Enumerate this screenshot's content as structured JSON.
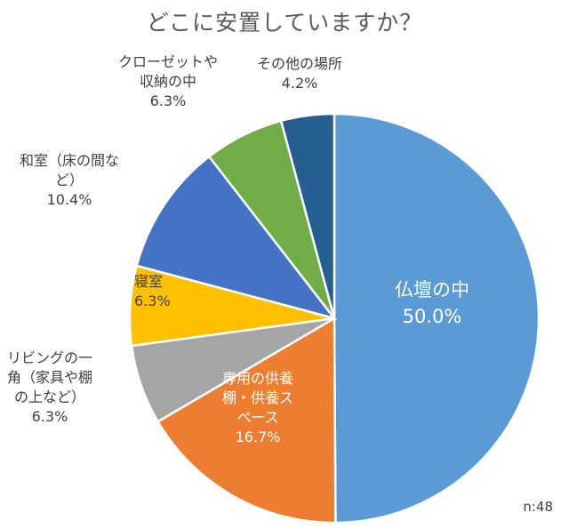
{
  "chart_data": {
    "type": "pie",
    "title": "どこに安置していますか？",
    "note": "n:48",
    "slices": [
      {
        "label_lines": [
          "仏壇の中"
        ],
        "value": 50.0,
        "display": "50.0%",
        "color": "#5b9bd5"
      },
      {
        "label_lines": [
          "専用の供養",
          "棚・供養ス",
          "ペース"
        ],
        "value": 16.7,
        "display": "16.7%",
        "color": "#ed7d31"
      },
      {
        "label_lines": [
          "リビングの一",
          "角（家具や棚",
          "の上など）"
        ],
        "value": 6.3,
        "display": "6.3%",
        "color": "#a5a5a5"
      },
      {
        "label_lines": [
          "寝室"
        ],
        "value": 6.3,
        "display": "6.3%",
        "color": "#ffc000"
      },
      {
        "label_lines": [
          "和室（床の間な",
          "ど）"
        ],
        "value": 10.4,
        "display": "10.4%",
        "color": "#4472c4"
      },
      {
        "label_lines": [
          "クローゼットや",
          "収納の中"
        ],
        "value": 6.3,
        "display": "6.3%",
        "color": "#70ad47"
      },
      {
        "label_lines": [
          "その他の場所"
        ],
        "value": 4.2,
        "display": "4.2%",
        "color": "#255e91"
      }
    ]
  }
}
